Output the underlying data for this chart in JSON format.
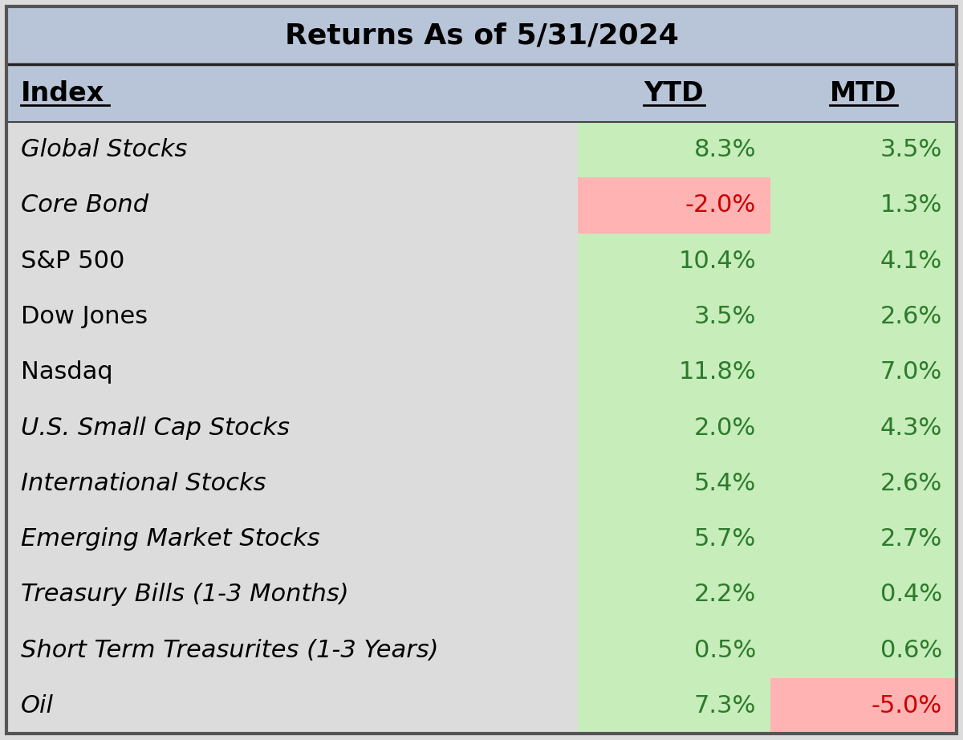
{
  "title": "Returns As of 5/31/2024",
  "header": [
    "Index",
    "YTD",
    "MTD"
  ],
  "rows": [
    {
      "index": "Global Stocks",
      "ytd": "8.3%",
      "mtd": "3.5%",
      "italic": true,
      "ytd_bg": "green",
      "mtd_bg": "green",
      "ytd_neg": false,
      "mtd_neg": false
    },
    {
      "index": "Core Bond",
      "ytd": "-2.0%",
      "mtd": "1.3%",
      "italic": true,
      "ytd_bg": "red",
      "mtd_bg": "green",
      "ytd_neg": true,
      "mtd_neg": false
    },
    {
      "index": "S&P 500",
      "ytd": "10.4%",
      "mtd": "4.1%",
      "italic": false,
      "ytd_bg": "green",
      "mtd_bg": "green",
      "ytd_neg": false,
      "mtd_neg": false
    },
    {
      "index": "Dow Jones",
      "ytd": "3.5%",
      "mtd": "2.6%",
      "italic": false,
      "ytd_bg": "green",
      "mtd_bg": "green",
      "ytd_neg": false,
      "mtd_neg": false
    },
    {
      "index": "Nasdaq",
      "ytd": "11.8%",
      "mtd": "7.0%",
      "italic": false,
      "ytd_bg": "green",
      "mtd_bg": "green",
      "ytd_neg": false,
      "mtd_neg": false
    },
    {
      "index": "U.S. Small Cap Stocks",
      "ytd": "2.0%",
      "mtd": "4.3%",
      "italic": true,
      "ytd_bg": "green",
      "mtd_bg": "green",
      "ytd_neg": false,
      "mtd_neg": false
    },
    {
      "index": "International Stocks",
      "ytd": "5.4%",
      "mtd": "2.6%",
      "italic": true,
      "ytd_bg": "green",
      "mtd_bg": "green",
      "ytd_neg": false,
      "mtd_neg": false
    },
    {
      "index": "Emerging Market Stocks",
      "ytd": "5.7%",
      "mtd": "2.7%",
      "italic": true,
      "ytd_bg": "green",
      "mtd_bg": "green",
      "ytd_neg": false,
      "mtd_neg": false
    },
    {
      "index": "Treasury Bills (1-3 Months)",
      "ytd": "2.2%",
      "mtd": "0.4%",
      "italic": true,
      "ytd_bg": "green",
      "mtd_bg": "green",
      "ytd_neg": false,
      "mtd_neg": false
    },
    {
      "index": "Short Term Treasurites (1-3 Years)",
      "ytd": "0.5%",
      "mtd": "0.6%",
      "italic": true,
      "ytd_bg": "green",
      "mtd_bg": "green",
      "ytd_neg": false,
      "mtd_neg": false
    },
    {
      "index": "Oil",
      "ytd": "7.3%",
      "mtd": "-5.0%",
      "italic": true,
      "ytd_bg": "green",
      "mtd_bg": "red",
      "ytd_neg": false,
      "mtd_neg": true
    }
  ],
  "title_bg": "#b8c4d8",
  "header_bg": "#b8c4d8",
  "row_bg_left": "#dcdcdc",
  "green_bg": "#c6edba",
  "red_bg": "#ffb3b3",
  "green_text": "#2d7a2d",
  "red_text": "#cc0000",
  "black_text": "#000000",
  "title_fontsize": 26,
  "header_fontsize": 24,
  "row_fontsize": 22
}
